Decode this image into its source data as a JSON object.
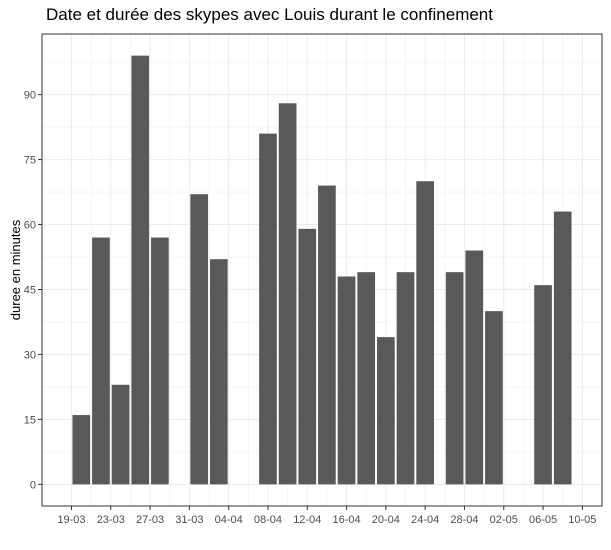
{
  "chart_data": {
    "type": "bar",
    "title": "Date et durée des skypes avec Louis durant le confinement",
    "xlabel": "",
    "ylabel": "duree en minutes",
    "x_tick_labels": [
      "19-03",
      "23-03",
      "27-03",
      "31-03",
      "04-04",
      "08-04",
      "12-04",
      "16-04",
      "20-04",
      "24-04",
      "28-04",
      "02-05",
      "06-05",
      "10-05"
    ],
    "y_ticks": [
      0,
      15,
      30,
      45,
      60,
      75,
      90
    ],
    "ylim": [
      -5,
      104
    ],
    "x_range_days": [
      -3,
      54
    ],
    "grid": true,
    "colors": {
      "bar": "#595959",
      "grid_major": "#ebebeb",
      "grid_minor": "#f3f3f3",
      "panel_border": "#333333"
    },
    "bars": [
      {
        "date": "20-03",
        "value": 16
      },
      {
        "date": "22-03",
        "value": 57
      },
      {
        "date": "24-03",
        "value": 23
      },
      {
        "date": "26-03",
        "value": 99
      },
      {
        "date": "28-03",
        "value": 57
      },
      {
        "date": "01-04",
        "value": 67
      },
      {
        "date": "03-04",
        "value": 52
      },
      {
        "date": "08-04",
        "value": 81
      },
      {
        "date": "10-04",
        "value": 88
      },
      {
        "date": "12-04",
        "value": 59
      },
      {
        "date": "14-04",
        "value": 69
      },
      {
        "date": "16-04",
        "value": 48
      },
      {
        "date": "18-04",
        "value": 49
      },
      {
        "date": "20-04",
        "value": 34
      },
      {
        "date": "22-04",
        "value": 49
      },
      {
        "date": "24-04",
        "value": 70
      },
      {
        "date": "27-04",
        "value": 49
      },
      {
        "date": "29-04",
        "value": 54
      },
      {
        "date": "01-05",
        "value": 40
      },
      {
        "date": "06-05",
        "value": 46
      },
      {
        "date": "08-05",
        "value": 63
      }
    ]
  }
}
